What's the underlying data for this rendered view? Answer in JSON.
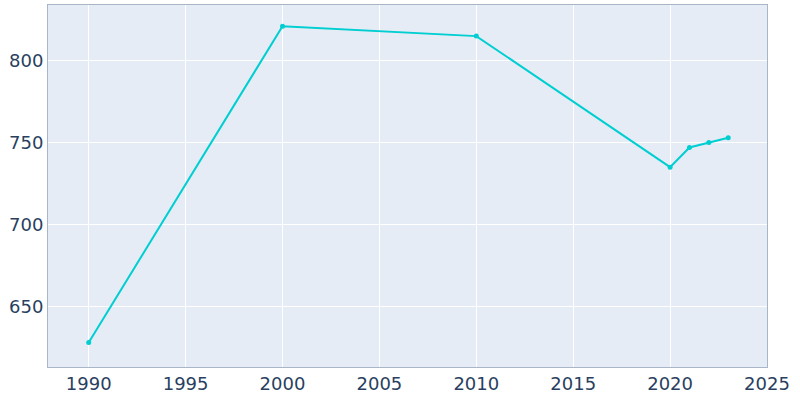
{
  "chart_data": {
    "type": "line",
    "x": [
      1990,
      2000,
      2010,
      2020,
      2021,
      2022,
      2023
    ],
    "values": [
      628,
      821,
      815,
      735,
      747,
      750,
      753
    ],
    "color": "#00ced1",
    "marker": "circle",
    "xlim": [
      1987.9,
      2025
    ],
    "xticks": [
      1990,
      1995,
      2000,
      2005,
      2010,
      2015,
      2020,
      2025
    ],
    "ylim": [
      613,
      834
    ],
    "yticks": [
      650,
      700,
      750,
      800
    ],
    "grid": true
  }
}
